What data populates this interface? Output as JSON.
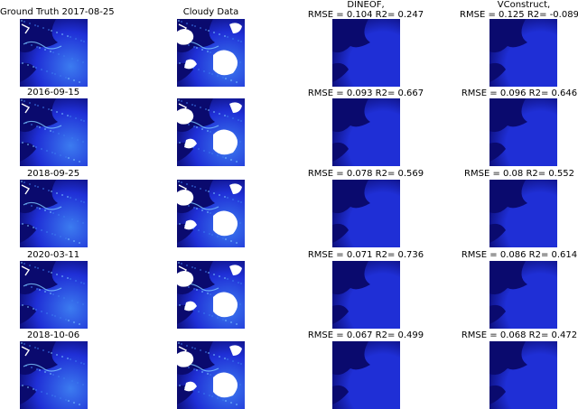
{
  "columns": {
    "ground_truth": "Ground Truth 2017-08-25",
    "cloudy": "Cloudy Data",
    "dineof": "DINEOF,",
    "vconstruct": "VConstruct,"
  },
  "rows": [
    {
      "date": "",
      "dineof_metrics": "RMSE = 0.104 R2= 0.247",
      "vconstruct_metrics": "RMSE = 0.125 R2= -0.089"
    },
    {
      "date": "2016-09-15",
      "dineof_metrics": "RMSE = 0.093 R2= 0.667",
      "vconstruct_metrics": "RMSE = 0.096 R2= 0.646"
    },
    {
      "date": "2018-09-25",
      "dineof_metrics": "RMSE = 0.078 R2= 0.569",
      "vconstruct_metrics": "RMSE = 0.08 R2= 0.552"
    },
    {
      "date": "2020-03-11",
      "dineof_metrics": "RMSE = 0.071 R2= 0.736",
      "vconstruct_metrics": "RMSE = 0.086 R2= 0.614"
    },
    {
      "date": "2018-10-06",
      "dineof_metrics": "RMSE = 0.067 R2= 0.499",
      "vconstruct_metrics": "RMSE = 0.068 R2= 0.472"
    }
  ],
  "colors": {
    "deep": "#0a0a6e",
    "mid": "#1f2fd6",
    "bright": "#3c7cf0",
    "cyan": "#7ec8ff",
    "cloud": "#ffffff"
  }
}
